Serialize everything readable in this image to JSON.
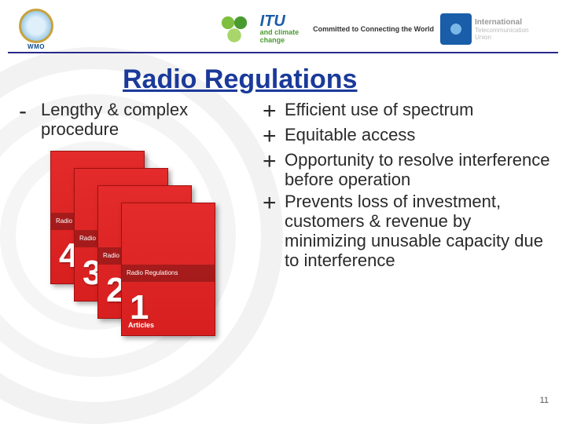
{
  "header": {
    "wmo_label": "WMO",
    "itu_text": "ITU",
    "climate_line1": "and climate",
    "climate_line2": "change",
    "tagline": "Committed to Connecting the World",
    "itu_right_main": "International",
    "itu_right_sub1": "Telecommunication",
    "itu_right_sub2": "Union"
  },
  "title": "Radio Regulations",
  "left": {
    "minus_item": "Lengthy & complex procedure"
  },
  "right": {
    "items": [
      "Efficient use of spectrum",
      "Equitable access",
      "Opportunity to resolve interference before operation",
      "Prevents loss of investment, customers & revenue by minimizing unusable capacity due to interference"
    ]
  },
  "books": {
    "stripe": "Radio Regulations",
    "nums": [
      "4",
      "3",
      "2",
      "1"
    ],
    "foot": "Articles"
  },
  "page_number": "11",
  "colors": {
    "title": "#1a3a9a",
    "book": "#e42b2b",
    "text": "#2a2a2a"
  }
}
